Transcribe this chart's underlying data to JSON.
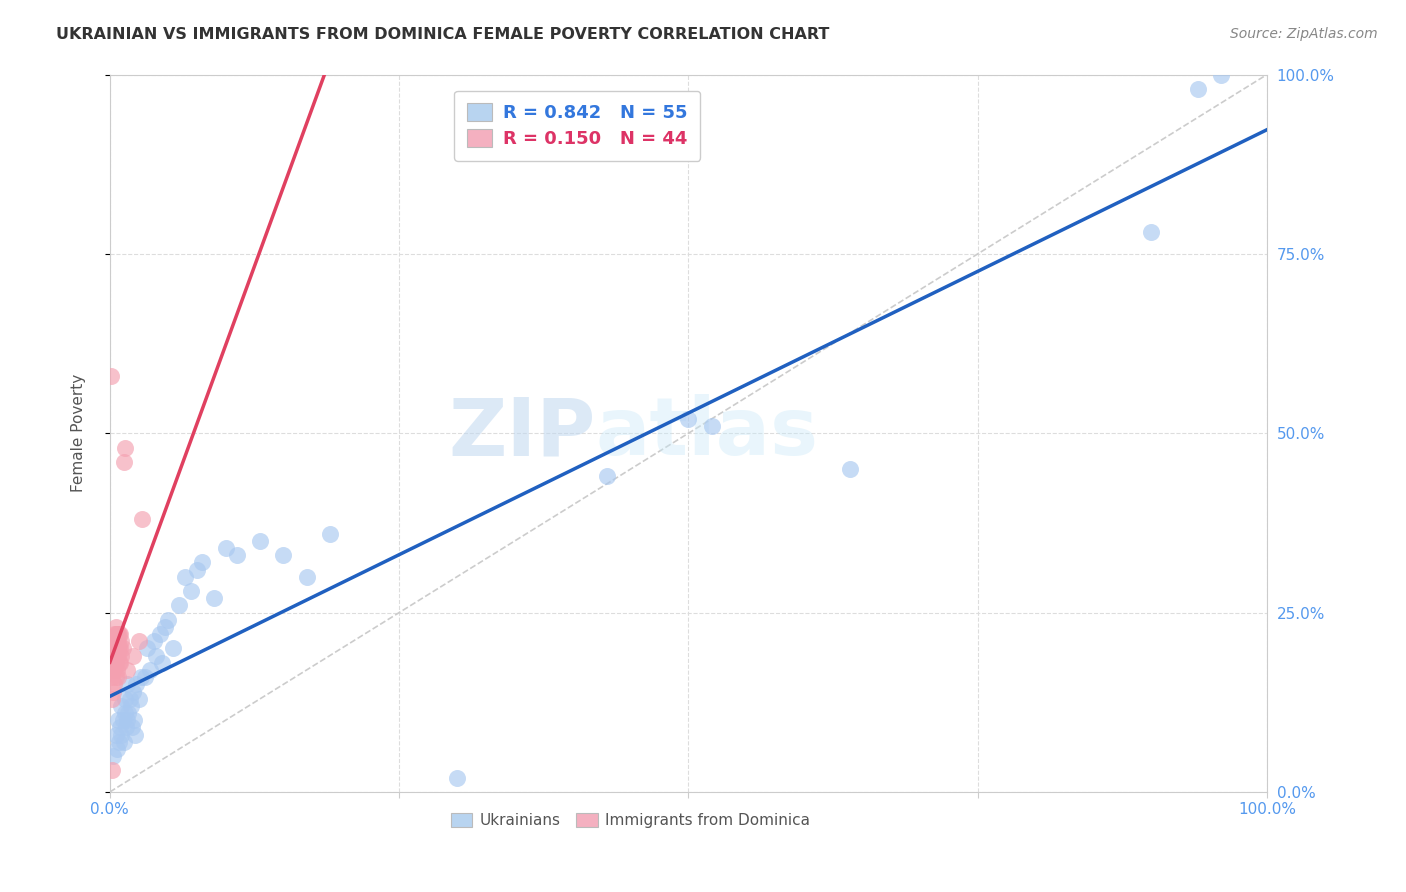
{
  "title": "UKRAINIAN VS IMMIGRANTS FROM DOMINICA FEMALE POVERTY CORRELATION CHART",
  "source": "Source: ZipAtlas.com",
  "ylabel": "Female Poverty",
  "xlim": [
    0.0,
    1.0
  ],
  "ylim": [
    0.0,
    1.0
  ],
  "ytick_positions": [
    0.0,
    0.25,
    0.5,
    0.75,
    1.0
  ],
  "xtick_positions": [
    0.0,
    0.25,
    0.5,
    0.75,
    1.0
  ],
  "grid_color": "#dddddd",
  "background_color": "#ffffff",
  "watermark_zip": "ZIP",
  "watermark_atlas": "atlas",
  "blue_color": "#a8c8f0",
  "pink_color": "#f4a0b0",
  "blue_line_color": "#2060c0",
  "pink_line_color": "#e04060",
  "right_axis_color": "#5599ee",
  "diagonal_color": "#cccccc",
  "series": [
    {
      "name": "Ukrainians",
      "color": "#a8c8f0",
      "line_color": "#2060c0",
      "R": 0.842,
      "N": 55,
      "x": [
        0.003,
        0.005,
        0.006,
        0.007,
        0.008,
        0.009,
        0.01,
        0.01,
        0.011,
        0.012,
        0.013,
        0.013,
        0.014,
        0.015,
        0.015,
        0.016,
        0.017,
        0.018,
        0.019,
        0.02,
        0.021,
        0.022,
        0.023,
        0.025,
        0.027,
        0.03,
        0.032,
        0.035,
        0.038,
        0.04,
        0.043,
        0.045,
        0.048,
        0.05,
        0.055,
        0.06,
        0.065,
        0.07,
        0.075,
        0.08,
        0.09,
        0.1,
        0.11,
        0.13,
        0.15,
        0.17,
        0.19,
        0.3,
        0.43,
        0.5,
        0.52,
        0.64,
        0.9,
        0.94,
        0.96
      ],
      "y": [
        0.05,
        0.08,
        0.06,
        0.1,
        0.07,
        0.09,
        0.08,
        0.12,
        0.1,
        0.07,
        0.11,
        0.13,
        0.09,
        0.1,
        0.15,
        0.11,
        0.13,
        0.12,
        0.09,
        0.14,
        0.1,
        0.08,
        0.15,
        0.13,
        0.16,
        0.16,
        0.2,
        0.17,
        0.21,
        0.19,
        0.22,
        0.18,
        0.23,
        0.24,
        0.2,
        0.26,
        0.3,
        0.28,
        0.31,
        0.32,
        0.27,
        0.34,
        0.33,
        0.35,
        0.33,
        0.3,
        0.36,
        0.02,
        0.44,
        0.52,
        0.51,
        0.45,
        0.78,
        0.98,
        1.0
      ]
    },
    {
      "name": "Immigrants from Dominica",
      "color": "#f4a0b0",
      "line_color": "#e04060",
      "R": 0.15,
      "N": 44,
      "x": [
        0.001,
        0.002,
        0.002,
        0.002,
        0.003,
        0.003,
        0.003,
        0.003,
        0.004,
        0.004,
        0.004,
        0.004,
        0.004,
        0.005,
        0.005,
        0.005,
        0.005,
        0.005,
        0.005,
        0.006,
        0.006,
        0.006,
        0.006,
        0.006,
        0.007,
        0.007,
        0.007,
        0.007,
        0.007,
        0.008,
        0.008,
        0.008,
        0.009,
        0.009,
        0.009,
        0.01,
        0.01,
        0.011,
        0.012,
        0.013,
        0.015,
        0.02,
        0.025,
        0.028
      ],
      "y": [
        0.58,
        0.13,
        0.16,
        0.03,
        0.14,
        0.17,
        0.19,
        0.2,
        0.15,
        0.18,
        0.2,
        0.21,
        0.22,
        0.16,
        0.18,
        0.19,
        0.21,
        0.22,
        0.23,
        0.17,
        0.19,
        0.2,
        0.21,
        0.22,
        0.16,
        0.19,
        0.2,
        0.21,
        0.22,
        0.18,
        0.2,
        0.22,
        0.18,
        0.2,
        0.22,
        0.19,
        0.21,
        0.2,
        0.46,
        0.48,
        0.17,
        0.19,
        0.21,
        0.38
      ]
    }
  ]
}
